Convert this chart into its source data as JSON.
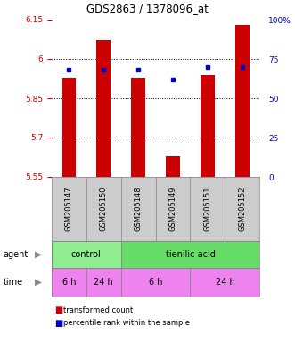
{
  "title": "GDS2863 / 1378096_at",
  "samples": [
    "GSM205147",
    "GSM205150",
    "GSM205148",
    "GSM205149",
    "GSM205151",
    "GSM205152"
  ],
  "red_values": [
    5.93,
    6.07,
    5.93,
    5.63,
    5.94,
    6.13
  ],
  "blue_values": [
    68,
    68,
    68,
    62,
    70,
    70
  ],
  "ylim_left": [
    5.55,
    6.15
  ],
  "ylim_right": [
    0,
    100
  ],
  "yticks_left": [
    5.55,
    5.7,
    5.85,
    6.0,
    6.15
  ],
  "ytick_labels_left": [
    "5.55",
    "5.7",
    "5.85",
    "6",
    "6.15"
  ],
  "yticks_right": [
    0,
    25,
    50,
    75,
    100
  ],
  "ytick_labels_right": [
    "0",
    "25",
    "50",
    "75",
    "100%"
  ],
  "bar_bottom": 5.55,
  "bar_width": 0.4,
  "bar_color": "#cc0000",
  "dot_color": "#0000cc",
  "tick_color_left": "#cc0000",
  "tick_color_right": "#0000cc",
  "grid_yticks": [
    5.7,
    5.85,
    6.0
  ],
  "agent_data": [
    [
      "control",
      0,
      2,
      "#90ee90"
    ],
    [
      "tienilic acid",
      2,
      6,
      "#66dd66"
    ]
  ],
  "time_data": [
    [
      "6 h",
      0,
      1
    ],
    [
      "24 h",
      1,
      2
    ],
    [
      "6 h",
      2,
      4
    ],
    [
      "24 h",
      4,
      6
    ]
  ],
  "time_color": "#ee82ee",
  "label_bg": "#cccccc",
  "label_legend_red": "transformed count",
  "label_legend_blue": "percentile rank within the sample"
}
